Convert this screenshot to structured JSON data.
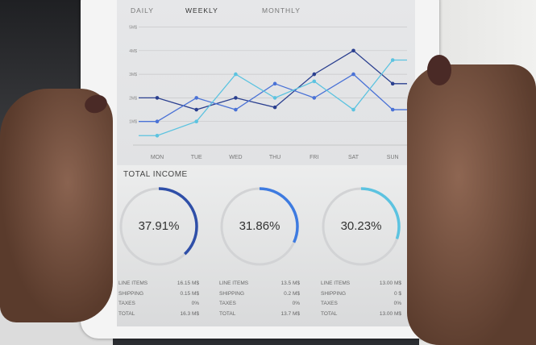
{
  "tabs": [
    {
      "label": "DAILY"
    },
    {
      "label": "WEEKLY"
    },
    {
      "label": "MONTHLY"
    }
  ],
  "chart_data": {
    "type": "line",
    "categories": [
      "MON",
      "TUE",
      "WED",
      "THU",
      "FRI",
      "SAT",
      "SUN"
    ],
    "y_ticks": [
      "1M$",
      "2M$",
      "3M$",
      "4M$",
      "5M$"
    ],
    "ylim": [
      0,
      5
    ],
    "grid": true,
    "series": [
      {
        "color": "#2a3f8f",
        "values": [
          2,
          1.5,
          2,
          1.6,
          3,
          4,
          2.6
        ]
      },
      {
        "color": "#4a72d6",
        "values": [
          1,
          2,
          1.5,
          2.6,
          2,
          3,
          1.5
        ]
      },
      {
        "color": "#5cc3e0",
        "values": [
          0.4,
          1,
          3,
          2,
          2.7,
          1.5,
          3.6
        ]
      }
    ]
  },
  "income": {
    "title": "TOTAL INCOME",
    "cards": [
      {
        "percent": "37.91%",
        "value": 37.91,
        "color": "#2f4fa8",
        "rows": [
          [
            "LINE ITEMS",
            "16.15 M$"
          ],
          [
            "SHIPPING",
            "0.15 M$"
          ],
          [
            "TAXES",
            "0%"
          ],
          [
            "TOTAL",
            "16.3 M$"
          ]
        ]
      },
      {
        "percent": "31.86%",
        "value": 31.86,
        "color": "#3e7be0",
        "rows": [
          [
            "LINE ITEMS",
            "13.5 M$"
          ],
          [
            "SHIPPING",
            "0.2 M$"
          ],
          [
            "TAXES",
            "0%"
          ],
          [
            "TOTAL",
            "13.7 M$"
          ]
        ]
      },
      {
        "percent": "30.23%",
        "value": 30.23,
        "color": "#5cc3e0",
        "rows": [
          [
            "LINE ITEMS",
            "13.00 M$"
          ],
          [
            "SHIPPING",
            "0 $"
          ],
          [
            "TAXES",
            "0%"
          ],
          [
            "TOTAL",
            "13.00 M$"
          ]
        ]
      }
    ]
  }
}
